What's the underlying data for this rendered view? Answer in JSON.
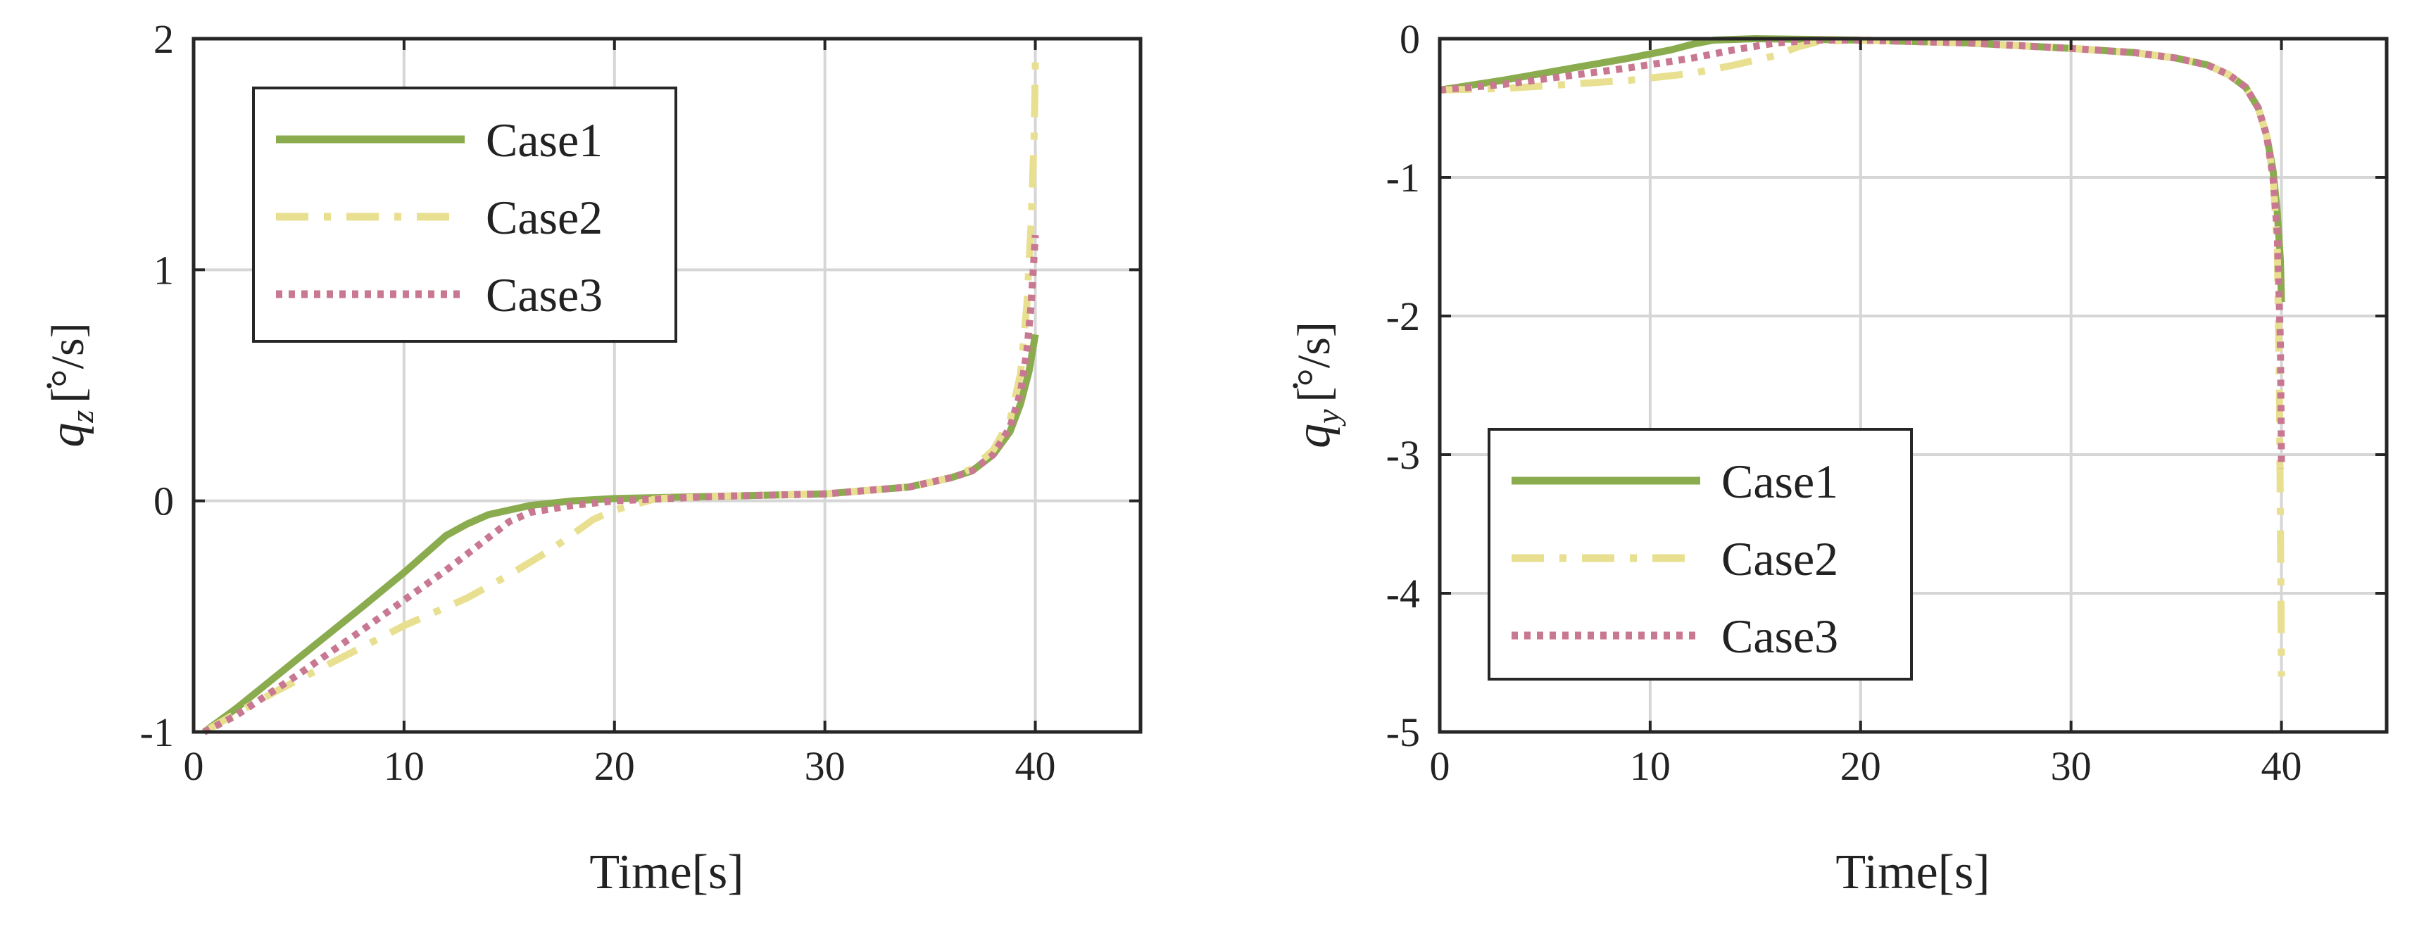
{
  "chart_data": [
    {
      "type": "line",
      "title": "",
      "xlabel": "Time[s]",
      "ylabel": {
        "symbol": "q",
        "subscript": "z",
        "unit": "[°/s]"
      },
      "xlim": [
        0,
        45
      ],
      "ylim": [
        -1,
        2
      ],
      "xticks": [
        0,
        10,
        20,
        30,
        40
      ],
      "yticks": [
        -1,
        0,
        1,
        2
      ],
      "grid": true,
      "legend_position": "top-left",
      "series": [
        {
          "name": "Case1",
          "style": "solid",
          "x": [
            0.5,
            2,
            5,
            8,
            10,
            11,
            12,
            13,
            14,
            15,
            16,
            18,
            20,
            25,
            30,
            34,
            36,
            37,
            38,
            38.8,
            39.3,
            39.7,
            40
          ],
          "y": [
            -1.0,
            -0.9,
            -0.68,
            -0.46,
            -0.31,
            -0.23,
            -0.15,
            -0.1,
            -0.06,
            -0.04,
            -0.02,
            0.0,
            0.01,
            0.02,
            0.03,
            0.06,
            0.1,
            0.13,
            0.2,
            0.3,
            0.42,
            0.56,
            0.72
          ]
        },
        {
          "name": "Case2",
          "style": "dashdot",
          "x": [
            0.5,
            2,
            4,
            7,
            10,
            13,
            15,
            17,
            19,
            20,
            22,
            25,
            30,
            34,
            36,
            37,
            38,
            38.8,
            39.3,
            39.6,
            39.8,
            39.95,
            40
          ],
          "y": [
            -1.0,
            -0.92,
            -0.82,
            -0.68,
            -0.54,
            -0.42,
            -0.32,
            -0.21,
            -0.08,
            -0.04,
            0.01,
            0.02,
            0.03,
            0.06,
            0.1,
            0.14,
            0.22,
            0.35,
            0.55,
            0.85,
            1.2,
            1.6,
            1.9
          ]
        },
        {
          "name": "Case3",
          "style": "dotted",
          "x": [
            0.5,
            2,
            5,
            8,
            10,
            12,
            14,
            15,
            16,
            18,
            20,
            25,
            30,
            34,
            36,
            37,
            38,
            38.8,
            39.3,
            39.6,
            39.8,
            40
          ],
          "y": [
            -1.0,
            -0.93,
            -0.75,
            -0.56,
            -0.43,
            -0.3,
            -0.16,
            -0.09,
            -0.05,
            -0.02,
            0.0,
            0.02,
            0.03,
            0.06,
            0.1,
            0.13,
            0.2,
            0.32,
            0.47,
            0.65,
            0.85,
            1.15
          ]
        }
      ]
    },
    {
      "type": "line",
      "title": "",
      "xlabel": "Time[s]",
      "ylabel": {
        "symbol": "q",
        "subscript": "y",
        "unit": "[°/s]"
      },
      "xlim": [
        0,
        45
      ],
      "ylim": [
        -5,
        0
      ],
      "xticks": [
        0,
        10,
        20,
        30,
        40
      ],
      "yticks": [
        -5,
        -4,
        -3,
        -2,
        -1,
        0
      ],
      "grid": true,
      "legend_position": "bottom-left",
      "series": [
        {
          "name": "Case1",
          "style": "solid",
          "x": [
            0,
            3,
            6,
            9,
            11,
            12,
            13,
            15,
            20,
            25,
            30,
            33,
            35,
            36.5,
            37.5,
            38.3,
            38.9,
            39.3,
            39.6,
            39.8,
            39.95,
            40
          ],
          "y": [
            -0.37,
            -0.3,
            -0.22,
            -0.14,
            -0.08,
            -0.04,
            -0.01,
            0.0,
            -0.01,
            -0.03,
            -0.07,
            -0.1,
            -0.14,
            -0.19,
            -0.26,
            -0.35,
            -0.5,
            -0.7,
            -0.95,
            -1.25,
            -1.6,
            -1.9
          ]
        },
        {
          "name": "Case2",
          "style": "dashdot",
          "x": [
            0,
            3,
            6,
            9,
            12,
            14,
            16,
            17,
            18,
            20,
            25,
            30,
            33,
            35,
            36.5,
            37.5,
            38.3,
            38.9,
            39.3,
            39.6,
            39.8,
            39.9,
            39.95,
            40
          ],
          "y": [
            -0.37,
            -0.36,
            -0.33,
            -0.3,
            -0.25,
            -0.19,
            -0.12,
            -0.06,
            -0.02,
            -0.01,
            -0.03,
            -0.07,
            -0.1,
            -0.14,
            -0.19,
            -0.26,
            -0.35,
            -0.5,
            -0.7,
            -1.0,
            -1.5,
            -2.5,
            -3.5,
            -4.6
          ]
        },
        {
          "name": "Case3",
          "style": "dotted",
          "x": [
            0,
            3,
            6,
            9,
            12,
            14,
            16,
            18,
            20,
            25,
            30,
            33,
            35,
            36.5,
            37.5,
            38.3,
            38.9,
            39.3,
            39.6,
            39.8,
            39.95,
            40
          ],
          "y": [
            -0.37,
            -0.33,
            -0.27,
            -0.21,
            -0.14,
            -0.08,
            -0.03,
            -0.01,
            -0.01,
            -0.03,
            -0.07,
            -0.1,
            -0.14,
            -0.19,
            -0.26,
            -0.35,
            -0.5,
            -0.7,
            -1.0,
            -1.4,
            -2.2,
            -3.1
          ]
        }
      ]
    }
  ],
  "colors": {
    "case1": "#8aac4e",
    "case2": "#e8e090",
    "case3": "#c87890",
    "grid": "#d6d6d6",
    "axis": "#262626",
    "text": "#222222"
  }
}
